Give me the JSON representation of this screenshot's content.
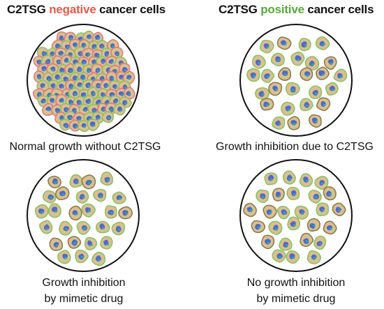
{
  "headers": {
    "left": {
      "prefix": "C2TSG ",
      "highlight": "negative",
      "suffix": " cancer cells",
      "highlight_color": "#e25a4a"
    },
    "right": {
      "prefix": "C2TSG ",
      "highlight": "positive",
      "suffix": " cancer cells",
      "highlight_color": "#5aa83c"
    }
  },
  "panels": [
    {
      "id": "top-left",
      "density": "dense",
      "caption_lines": [
        "Normal growth without C2TSG"
      ]
    },
    {
      "id": "top-right",
      "density": "sparse",
      "caption_lines": [
        "Growth inhibition due to C2TSG"
      ]
    },
    {
      "id": "bottom-left",
      "density": "sparse",
      "caption_lines": [
        "Growth inhibition",
        "by mimetic drug"
      ]
    },
    {
      "id": "bottom-right",
      "density": "sparse",
      "caption_lines": [
        "No growth inhibition",
        "by mimetic drug"
      ]
    }
  ],
  "colors": {
    "cell_fill": "#d9c18f",
    "cell_stroke": "#8a7a4a",
    "cell_rim_green": "#8cc063",
    "cell_rim_red": "#e07a7a",
    "nucleus_blue": "#5566c8",
    "nucleus_teal": "#2fa7a8",
    "dish_stroke": "#111111"
  }
}
